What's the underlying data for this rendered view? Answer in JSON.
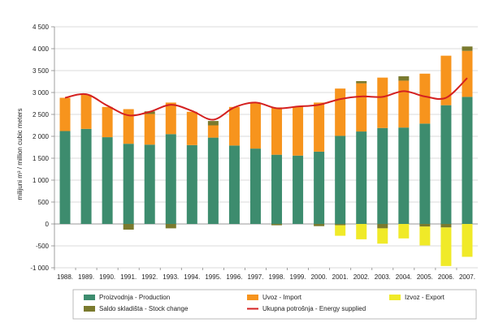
{
  "chart_data": {
    "type": "bar",
    "ylabel": "milijuni m³ / million cubic meters",
    "ylim": [
      -1000,
      4500
    ],
    "yticks": [
      4500,
      4000,
      3500,
      3000,
      2500,
      2000,
      1500,
      1000,
      500,
      0,
      -500,
      -1000
    ],
    "ytick_labels": [
      "4 500",
      "4 000",
      "3 500",
      "3 000",
      "2 500",
      "2 000",
      "1 500",
      "1 000",
      "500",
      "0",
      "-500",
      "-1 000"
    ],
    "categories": [
      "1988.",
      "1989.",
      "1990.",
      "1991.",
      "1992.",
      "1993.",
      "1994.",
      "1995.",
      "1996.",
      "1997.",
      "1998.",
      "1999.",
      "2000.",
      "2001.",
      "2002.",
      "2003.",
      "2004.",
      "2005.",
      "2006.",
      "2007."
    ],
    "stacked": true,
    "grid": "horizontal",
    "legend_position": "bottom",
    "series": [
      {
        "name": "Proizvodnja - Production",
        "type": "bar",
        "color": "#3d8c6e",
        "values": [
          2120,
          2170,
          1980,
          1830,
          1810,
          2050,
          1800,
          1970,
          1790,
          1720,
          1580,
          1560,
          1650,
          2010,
          2110,
          2190,
          2200,
          2290,
          2710,
          2900
        ]
      },
      {
        "name": "Uvoz - Import",
        "type": "bar",
        "color": "#f7941d",
        "values": [
          760,
          780,
          690,
          790,
          700,
          720,
          760,
          280,
          880,
          1050,
          1080,
          1120,
          1120,
          1080,
          1100,
          1150,
          1070,
          1140,
          1130,
          1050
        ]
      },
      {
        "name": "Izvoz - Export",
        "type": "bar",
        "color": "#f0ea28",
        "values": [
          0,
          0,
          0,
          0,
          0,
          0,
          0,
          0,
          0,
          0,
          0,
          0,
          0,
          -240,
          -350,
          -350,
          -330,
          -430,
          -880,
          -750
        ]
      },
      {
        "name": "Saldo skladišta - Stock change",
        "type": "bar",
        "color": "#7a7a2e",
        "values": [
          0,
          0,
          0,
          -130,
          60,
          -100,
          0,
          100,
          0,
          0,
          -30,
          0,
          -50,
          -30,
          50,
          -100,
          100,
          -60,
          -80,
          100
        ]
      },
      {
        "name": "Ukupna potrošnja - Energy supplied",
        "type": "line",
        "color": "#d42020",
        "values": [
          2880,
          2960,
          2700,
          2480,
          2560,
          2720,
          2580,
          2380,
          2660,
          2770,
          2640,
          2680,
          2720,
          2850,
          2910,
          2900,
          3030,
          2910,
          2880,
          3330
        ]
      }
    ],
    "legend": [
      {
        "label": "Proizvodnja - Production",
        "kind": "box",
        "color": "#3d8c6e"
      },
      {
        "label": "Uvoz - Import",
        "kind": "box",
        "color": "#f7941d"
      },
      {
        "label": "Izvoz - Export",
        "kind": "box",
        "color": "#f0ea28"
      },
      {
        "label": "Saldo skladišta - Stock change",
        "kind": "box",
        "color": "#7a7a2e"
      },
      {
        "label": "Ukupna potrošnja - Energy supplied",
        "kind": "line",
        "color": "#d42020"
      }
    ]
  }
}
